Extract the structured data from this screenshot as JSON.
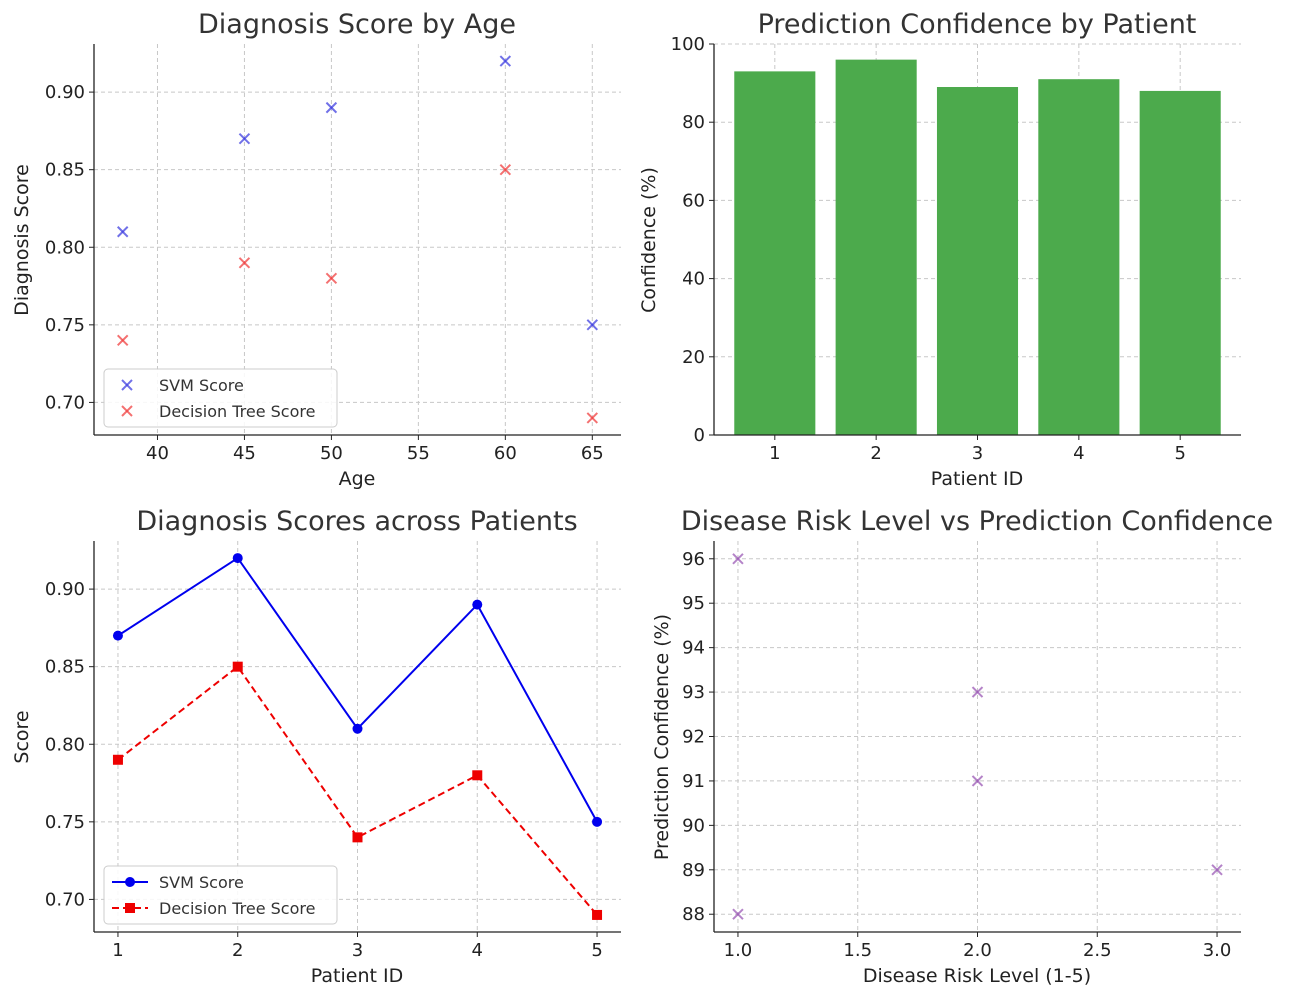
{
  "chart_data": [
    {
      "type": "scatter",
      "title": "Diagnosis Score by Age",
      "xlabel": "Age",
      "ylabel": "Diagnosis Score",
      "xlim": [
        36.35,
        66.65
      ],
      "ylim": [
        0.679,
        0.931
      ],
      "xticks": [
        40,
        45,
        50,
        55,
        60,
        65
      ],
      "yticks": [
        0.7,
        0.75,
        0.8,
        0.85,
        0.9
      ],
      "grid": true,
      "legend": "lower-left",
      "x": [
        38,
        45,
        50,
        60,
        65
      ],
      "series": [
        {
          "name": "SVM Score",
          "values": [
            0.81,
            0.87,
            0.89,
            0.92,
            0.75
          ],
          "color": "#4040e0",
          "marker": "x"
        },
        {
          "name": "Decision Tree Score",
          "values": [
            0.74,
            0.79,
            0.78,
            0.85,
            0.69
          ],
          "color": "#f04040",
          "marker": "x"
        }
      ]
    },
    {
      "type": "bar",
      "title": "Prediction Confidence by Patient",
      "xlabel": "Patient ID",
      "ylabel": "Confidence (%)",
      "categories": [
        "1",
        "2",
        "3",
        "4",
        "5"
      ],
      "values": [
        93,
        96,
        89,
        91,
        88
      ],
      "ylim": [
        0,
        100
      ],
      "yticks": [
        0,
        20,
        40,
        60,
        80,
        100
      ],
      "grid": true,
      "color": "#4caa4c"
    },
    {
      "type": "line",
      "title": "Diagnosis Scores across Patients",
      "xlabel": "Patient ID",
      "ylabel": "Score",
      "x": [
        1,
        2,
        3,
        4,
        5
      ],
      "xlim": [
        0.8,
        5.2
      ],
      "ylim": [
        0.679,
        0.931
      ],
      "xticks": [
        1,
        2,
        3,
        4,
        5
      ],
      "yticks": [
        0.7,
        0.75,
        0.8,
        0.85,
        0.9
      ],
      "grid": true,
      "legend": "lower-left",
      "series": [
        {
          "name": "SVM Score",
          "values": [
            0.87,
            0.92,
            0.81,
            0.89,
            0.75
          ],
          "color": "#0000ee",
          "marker": "circle",
          "linestyle": "solid"
        },
        {
          "name": "Decision Tree Score",
          "values": [
            0.79,
            0.85,
            0.74,
            0.78,
            0.69
          ],
          "color": "#ee0000",
          "marker": "square",
          "linestyle": "dashed"
        }
      ]
    },
    {
      "type": "scatter",
      "title": "Disease Risk Level vs Prediction Confidence",
      "xlabel": "Disease Risk Level (1-5)",
      "ylabel": "Prediction Confidence (%)",
      "xlim": [
        0.9,
        3.1
      ],
      "ylim": [
        87.6,
        96.4
      ],
      "xticks": [
        1.0,
        1.5,
        2.0,
        2.5,
        3.0
      ],
      "yticks": [
        88,
        89,
        90,
        91,
        92,
        93,
        94,
        95,
        96
      ],
      "grid": true,
      "x": [
        2,
        1,
        3,
        2,
        1
      ],
      "series": [
        {
          "name": "",
          "values": [
            93,
            96,
            89,
            91,
            88
          ],
          "color": "#9b59b6",
          "marker": "x"
        }
      ]
    }
  ]
}
